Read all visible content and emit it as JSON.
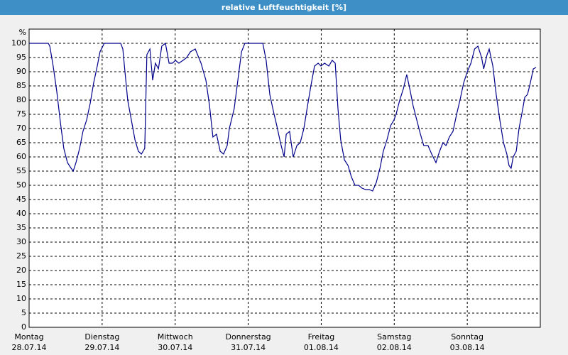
{
  "chart_data": {
    "type": "line",
    "title": "relative Luftfeuchtigkeit [%]",
    "y_unit_label": "%",
    "xlim": [
      0,
      168
    ],
    "xticks": [
      {
        "value": 0,
        "label": [
          "Montag",
          "28.07.14"
        ]
      },
      {
        "value": 24,
        "label": [
          "Dienstag",
          "29.07.14"
        ]
      },
      {
        "value": 48,
        "label": [
          "Mittwoch",
          "30.07.14"
        ]
      },
      {
        "value": 72,
        "label": [
          "Donnerstag",
          "31.07.14"
        ]
      },
      {
        "value": 96,
        "label": [
          "Freitag",
          "01.08.14"
        ]
      },
      {
        "value": 120,
        "label": [
          "Samstag",
          "02.08.14"
        ]
      },
      {
        "value": 144,
        "label": [
          "Sonntag",
          "03.08.14"
        ]
      }
    ],
    "ylim": [
      0,
      105
    ],
    "yticks": [
      0,
      5,
      10,
      15,
      20,
      25,
      30,
      35,
      40,
      45,
      50,
      55,
      60,
      65,
      70,
      75,
      80,
      85,
      90,
      95,
      100
    ],
    "grid": true,
    "color": "#00008b",
    "x": [
      0,
      6.3,
      6.8,
      7.9,
      9.1,
      10.3,
      11.4,
      12.6,
      13.8,
      14.5,
      15.4,
      16.6,
      17.7,
      18.9,
      20.1,
      21.2,
      22.4,
      23.3,
      24.7,
      30.1,
      30.8,
      31.5,
      32.4,
      33.6,
      34.8,
      35.9,
      36.9,
      38.0,
      38.7,
      39.7,
      40.6,
      41.5,
      42.5,
      43.6,
      44.8,
      46.0,
      47.1,
      48.1,
      49.2,
      50.6,
      51.8,
      53.0,
      54.6,
      56.5,
      58.1,
      59.3,
      60.4,
      61.6,
      62.8,
      63.9,
      65.1,
      65.8,
      67.4,
      68.6,
      69.8,
      70.9,
      72.1,
      76.8,
      77.9,
      79.1,
      80.3,
      81.4,
      82.6,
      83.8,
      84.5,
      85.6,
      86.8,
      88.0,
      89.1,
      90.3,
      91.5,
      92.6,
      93.8,
      95.0,
      95.9,
      97.1,
      98.5,
      99.6,
      100.6,
      101.5,
      102.4,
      103.6,
      104.8,
      105.9,
      107.1,
      108.3,
      109.4,
      110.6,
      111.8,
      112.9,
      114.1,
      115.3,
      116.4,
      117.6,
      118.8,
      119.9,
      120.6,
      121.8,
      123.0,
      124.1,
      125.1,
      126.2,
      127.4,
      128.6,
      129.7,
      131.1,
      132.3,
      133.7,
      134.9,
      136.0,
      137.0,
      138.1,
      139.3,
      140.5,
      141.6,
      142.8,
      144.0,
      145.2,
      146.4,
      147.5,
      148.7,
      149.4,
      150.5,
      151.2,
      152.4,
      153.5,
      154.7,
      155.9,
      157.0,
      157.7,
      158.4,
      159.1,
      160.1,
      161.0,
      161.9,
      162.9,
      163.8,
      164.7,
      165.7,
      166.6
    ],
    "values": [
      100,
      100,
      99,
      92,
      83,
      72,
      63,
      58,
      56,
      55,
      58,
      63,
      69,
      73,
      79,
      86,
      92,
      97,
      100,
      100,
      98,
      90,
      80,
      73,
      66,
      62,
      61,
      63,
      96,
      98,
      87,
      93,
      91,
      99,
      100,
      93,
      93,
      94,
      93,
      94,
      95,
      97,
      98,
      93,
      87,
      78,
      67,
      68,
      62,
      61,
      64,
      70,
      77,
      87,
      97,
      100,
      100,
      100,
      94,
      82,
      76,
      71,
      65,
      60,
      68,
      69,
      60,
      64,
      65,
      70,
      78,
      85,
      92,
      93,
      92,
      93,
      92,
      94,
      93,
      77,
      66,
      59,
      57,
      53,
      50,
      50,
      49,
      48.5,
      48.5,
      48,
      51,
      56,
      62,
      66,
      71,
      73,
      75,
      80,
      84,
      89,
      84,
      78,
      73,
      68,
      64,
      64,
      61,
      58,
      62,
      65,
      64,
      67,
      69,
      75,
      80,
      86,
      90,
      93,
      98,
      99,
      95,
      91,
      96,
      98,
      92,
      82,
      73,
      65,
      61,
      57,
      56,
      60,
      62,
      70,
      75,
      81,
      82,
      86,
      91,
      91.5
    ]
  }
}
